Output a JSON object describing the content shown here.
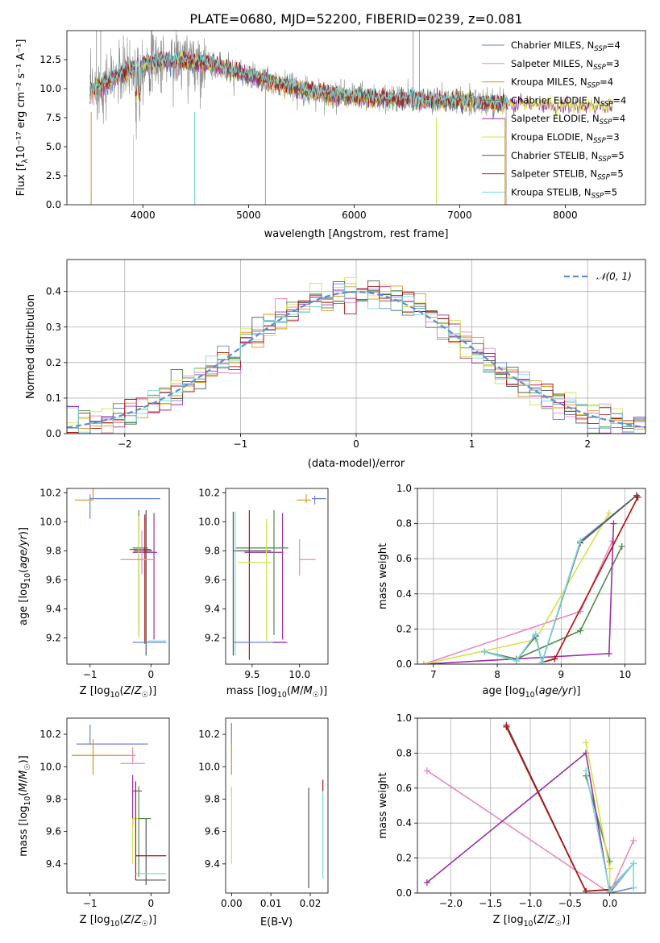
{
  "figure_title": "PLATE=0680, MJD=52200, FIBERID=0239, z=0.081",
  "series_colors": [
    "#6a86d4",
    "#e58bbf",
    "#e0921c",
    "#4d8c4d",
    "#9b30a6",
    "#d4e24a",
    "#555555",
    "#b01515",
    "#7cd9d9"
  ],
  "chart_data": [
    {
      "id": "spectrum",
      "type": "line",
      "title": "PLATE=0680, MJD=52200, FIBERID=0239, z=0.081",
      "xlabel": "wavelength [Angstrom, rest frame]",
      "ylabel": "Flux [fλ10⁻¹⁷ erg cm⁻² s⁻¹ A⁻¹]",
      "xlim": [
        3280,
        8760
      ],
      "ylim": [
        0,
        15
      ],
      "xticks": [
        4000,
        5000,
        6000,
        7000,
        8000
      ],
      "yticks": [
        0.0,
        2.5,
        5.0,
        7.5,
        10.0,
        12.5
      ],
      "data_color": "#888888",
      "data_range": [
        3500,
        7450
      ],
      "model_range": [
        3500,
        8450
      ],
      "grid": false,
      "legend_position": "upper-right",
      "legend": [
        {
          "label": "Chabrier MILES, N",
          "sub": "SSP",
          "suffix": "=4"
        },
        {
          "label": "Salpeter MILES, N",
          "sub": "SSP",
          "suffix": "=3"
        },
        {
          "label": "Kroupa MILES, N",
          "sub": "SSP",
          "suffix": "=4"
        },
        {
          "label": "Chabrier ELODIE, N",
          "sub": "SSP",
          "suffix": "=4"
        },
        {
          "label": "Salpeter ELODIE, N",
          "sub": "SSP",
          "suffix": "=4"
        },
        {
          "label": "Kroupa ELODIE, N",
          "sub": "SSP",
          "suffix": "=3"
        },
        {
          "label": "Chabrier STELIB, N",
          "sub": "SSP",
          "suffix": "=5"
        },
        {
          "label": "Salpeter STELIB, N",
          "sub": "SSP",
          "suffix": "=5"
        },
        {
          "label": "Kroupa STELIB, N",
          "sub": "SSP",
          "suffix": "=5"
        }
      ]
    },
    {
      "id": "residuals",
      "type": "histogram",
      "xlabel": "(data-model)/error",
      "ylabel": "Normed distribution",
      "xlim": [
        -2.5,
        2.5
      ],
      "ylim": [
        0,
        0.49
      ],
      "xticks": [
        -2,
        -1,
        0,
        1,
        2
      ],
      "yticks": [
        0.0,
        0.1,
        0.2,
        0.3,
        0.4
      ],
      "bin_width": 0.1,
      "reference_curve": {
        "label": "𝒩(0, 1)",
        "color": "#5b8fd4",
        "style": "dashed"
      },
      "grid": true,
      "legend_position": "upper-right"
    },
    {
      "id": "age_vs_Z",
      "type": "errorbar",
      "xlabel": "Z [log10(Z/Z☉)]",
      "ylabel": "age [log10(age/yr)]",
      "xlim": [
        -1.38,
        0.3
      ],
      "ylim": [
        9.02,
        10.23
      ],
      "xticks": [
        -1,
        0
      ],
      "yticks": [
        9.2,
        9.4,
        9.6,
        9.8,
        10.0,
        10.2
      ],
      "grid": false,
      "points": [
        {
          "s": 0,
          "x": -1.0,
          "y": 10.16,
          "xerr": [
            0.0,
            1.15
          ],
          "yerr": [
            0.14,
            0.03
          ]
        },
        {
          "s": 2,
          "x": -0.95,
          "y": 10.15,
          "xerr": [
            0.3,
            0.0
          ],
          "yerr": [
            0.0,
            0.2
          ]
        },
        {
          "s": 4,
          "x": 0.05,
          "y": 9.79,
          "xerr": [
            0.35,
            0.05
          ],
          "yerr": [
            0.6,
            0.27
          ]
        },
        {
          "s": 3,
          "x": -0.2,
          "y": 9.82,
          "xerr": [
            0.1,
            0.15
          ],
          "yerr": [
            0.6,
            0.26
          ]
        },
        {
          "s": 6,
          "x": -0.08,
          "y": 9.8,
          "xerr": [
            0.2,
            0.1
          ],
          "yerr": [
            0.72,
            0.28
          ]
        },
        {
          "s": 7,
          "x": -0.1,
          "y": 9.81,
          "xerr": [
            0.25,
            0.1
          ],
          "yerr": [
            0.65,
            0.24
          ]
        },
        {
          "s": 5,
          "x": -0.2,
          "y": 9.74,
          "xerr": [
            0.2,
            0.15
          ],
          "yerr": [
            0.54,
            0.3
          ]
        },
        {
          "s": 1,
          "x": -0.15,
          "y": 9.74,
          "xerr": [
            0.35,
            0.2
          ],
          "yerr": [
            0.1,
            0.2
          ]
        },
        {
          "s": 8,
          "x": 0.25,
          "y": 9.18,
          "xerr": [
            0.3,
            0.0
          ],
          "yerr": [
            0.0,
            0.0
          ]
        },
        {
          "s": 0,
          "x": -0.3,
          "y": 9.17,
          "xerr": [
            0.0,
            0.55
          ],
          "yerr": [
            0.0,
            0.0
          ]
        }
      ]
    },
    {
      "id": "age_vs_mass",
      "type": "errorbar",
      "xlabel": "mass [log10(M/M☉)]",
      "ylabel": "",
      "xlim": [
        9.22,
        10.3
      ],
      "ylim": [
        9.02,
        10.23
      ],
      "xticks": [
        9.5,
        10.0
      ],
      "yticks": [
        9.2,
        9.4,
        9.6,
        9.8,
        10.0,
        10.2
      ],
      "grid": false,
      "points": [
        {
          "s": 0,
          "x": 10.16,
          "y": 10.16,
          "xerr": [
            0.03,
            0.12
          ],
          "yerr": [
            0.04,
            0.02
          ]
        },
        {
          "s": 2,
          "x": 10.07,
          "y": 10.15,
          "xerr": [
            0.1,
            0.05
          ],
          "yerr": [
            0.02,
            0.04
          ]
        },
        {
          "s": 1,
          "x": 10.0,
          "y": 9.74,
          "xerr": [
            0.0,
            0.17
          ],
          "yerr": [
            0.11,
            0.14
          ]
        },
        {
          "s": 4,
          "x": 9.82,
          "y": 9.79,
          "xerr": [
            0.4,
            0.0
          ],
          "yerr": [
            0.6,
            0.27
          ]
        },
        {
          "s": 3,
          "x": 9.73,
          "y": 9.82,
          "xerr": [
            0.4,
            0.15
          ],
          "yerr": [
            0.6,
            0.26
          ]
        },
        {
          "s": 6,
          "x": 9.3,
          "y": 9.8,
          "xerr": [
            0.0,
            0.4
          ],
          "yerr": [
            0.72,
            0.27
          ]
        },
        {
          "s": 7,
          "x": 9.47,
          "y": 9.8,
          "xerr": [
            0.0,
            0.0
          ],
          "yerr": [
            0.75,
            0.28
          ]
        },
        {
          "s": 5,
          "x": 9.65,
          "y": 9.72,
          "xerr": [
            0.3,
            0.05
          ],
          "yerr": [
            0.54,
            0.3
          ]
        },
        {
          "s": 8,
          "x": 9.32,
          "y": 9.5,
          "xerr": [
            0.0,
            0.0
          ],
          "yerr": [
            0.42,
            0.57
          ]
        },
        {
          "s": 0,
          "x": 9.55,
          "y": 9.17,
          "xerr": [
            0.25,
            0.3
          ],
          "yerr": [
            0.0,
            0.0
          ]
        },
        {
          "s": 4,
          "x": 9.72,
          "y": 9.17,
          "xerr": [
            0.0,
            0.15
          ],
          "yerr": [
            0.0,
            0.0
          ]
        }
      ]
    },
    {
      "id": "weight_vs_age",
      "type": "line",
      "xlabel": "age  [log10(age/yr)]",
      "ylabel": "mass weight",
      "xlim": [
        6.75,
        10.32
      ],
      "ylim": [
        0.0,
        1.0
      ],
      "xticks": [
        7,
        8,
        9,
        10
      ],
      "yticks": [
        0.0,
        0.2,
        0.4,
        0.6,
        0.8,
        1.0
      ],
      "grid": true,
      "series": [
        {
          "s": 0,
          "x": [
            7.8,
            8.3,
            8.6,
            8.7,
            9.3,
            10.18
          ],
          "y": [
            0.07,
            0.02,
            0.17,
            0.01,
            0.7,
            0.96
          ]
        },
        {
          "s": 1,
          "x": [
            6.85,
            9.3,
            9.8
          ],
          "y": [
            0.0,
            0.3,
            0.7
          ]
        },
        {
          "s": 2,
          "x": [
            8.7,
            8.9,
            10.2
          ],
          "y": [
            0.01,
            0.03,
            0.95
          ]
        },
        {
          "s": 3,
          "x": [
            7.8,
            8.3,
            9.3,
            9.95
          ],
          "y": [
            0.07,
            0.03,
            0.19,
            0.67
          ]
        },
        {
          "s": 4,
          "x": [
            6.85,
            9.75,
            9.82
          ],
          "y": [
            0.0,
            0.06,
            0.8
          ]
        },
        {
          "s": 5,
          "x": [
            6.85,
            8.6,
            9.75
          ],
          "y": [
            0.0,
            0.14,
            0.86
          ]
        },
        {
          "s": 6,
          "x": [
            7.8,
            8.3,
            8.6,
            8.7,
            9.3,
            10.18
          ],
          "y": [
            0.07,
            0.02,
            0.16,
            0.01,
            0.69,
            0.96
          ]
        },
        {
          "s": 7,
          "x": [
            8.7,
            8.9,
            10.2
          ],
          "y": [
            0.01,
            0.03,
            0.95
          ]
        },
        {
          "s": 8,
          "x": [
            7.8,
            8.3,
            8.6,
            8.7,
            9.3
          ],
          "y": [
            0.07,
            0.02,
            0.17,
            0.01,
            0.7
          ]
        }
      ]
    },
    {
      "id": "mass_vs_Z",
      "type": "errorbar",
      "xlabel": "Z [log10(Z/Z☉)]",
      "ylabel": "mass [log10(M/M☉)]",
      "xlim": [
        -1.38,
        0.3
      ],
      "ylim": [
        9.22,
        10.3
      ],
      "xticks": [
        -1,
        0
      ],
      "yticks": [
        9.4,
        9.6,
        9.8,
        10.0,
        10.2
      ],
      "grid": false,
      "points": [
        {
          "s": 0,
          "x": -1.0,
          "y": 10.14,
          "xerr": [
            0.22,
            0.95
          ],
          "yerr": [
            0.0,
            0.12
          ]
        },
        {
          "s": 2,
          "x": -0.95,
          "y": 10.07,
          "xerr": [
            0.35,
            0.7
          ],
          "yerr": [
            0.12,
            0.1
          ]
        },
        {
          "s": 1,
          "x": -0.3,
          "y": 10.02,
          "xerr": [
            0.2,
            0.2
          ],
          "yerr": [
            0.0,
            0.1
          ]
        },
        {
          "s": 4,
          "x": -0.3,
          "y": 9.85,
          "xerr": [
            0.0,
            0.15
          ],
          "yerr": [
            0.22,
            0.1
          ]
        },
        {
          "s": 5,
          "x": -0.3,
          "y": 9.68,
          "xerr": [
            0.0,
            0.3
          ],
          "yerr": [
            0.28,
            0.0
          ]
        },
        {
          "s": 3,
          "x": -0.2,
          "y": 9.68,
          "xerr": [
            0.0,
            0.2
          ],
          "yerr": [
            0.36,
            0.2
          ]
        },
        {
          "s": 6,
          "x": -0.08,
          "y": 9.68,
          "xerr": [
            0.0,
            0.0
          ],
          "yerr": [
            0.41,
            0.0
          ]
        },
        {
          "s": 7,
          "x": -0.25,
          "y": 9.45,
          "xerr": [
            0.0,
            0.5
          ],
          "yerr": [
            0.15,
            0.46
          ]
        },
        {
          "s": 8,
          "x": 0.0,
          "y": 9.34,
          "xerr": [
            0.25,
            0.25
          ],
          "yerr": [
            0.0,
            0.0
          ]
        },
        {
          "s": 6,
          "x": -0.25,
          "y": 9.3,
          "xerr": [
            0.0,
            0.5
          ],
          "yerr": [
            0.0,
            0.0
          ]
        }
      ]
    },
    {
      "id": "mass_vs_ebv",
      "type": "errorbar",
      "xlabel": "E(B-V)",
      "ylabel": "",
      "xlim": [
        -0.0015,
        0.0245
      ],
      "ylim": [
        9.22,
        10.3
      ],
      "xticks": [
        0.0,
        0.01,
        0.02
      ],
      "yticks": [
        9.4,
        9.6,
        9.8,
        10.0,
        10.2
      ],
      "xtick_labels": [
        "0.00",
        "0.01",
        "0.02"
      ],
      "grid": false,
      "points": [
        {
          "s": 0,
          "x": 0.0,
          "y": 10.14,
          "xerr": [
            0,
            0
          ],
          "yerr": [
            0.0,
            0.13
          ]
        },
        {
          "s": 2,
          "x": 0.0,
          "y": 10.07,
          "xerr": [
            0,
            0
          ],
          "yerr": [
            0.12,
            0.1
          ]
        },
        {
          "s": 5,
          "x": 0.0,
          "y": 9.68,
          "xerr": [
            0,
            0
          ],
          "yerr": [
            0.28,
            0.2
          ]
        },
        {
          "s": 6,
          "x": 0.0196,
          "y": 9.55,
          "xerr": [
            0,
            0
          ],
          "yerr": [
            0.3,
            0.32
          ]
        },
        {
          "s": 7,
          "x": 0.0232,
          "y": 9.85,
          "xerr": [
            0,
            0
          ],
          "yerr": [
            0.0,
            0.07
          ]
        },
        {
          "s": 8,
          "x": 0.0232,
          "y": 9.58,
          "xerr": [
            0,
            0
          ],
          "yerr": [
            0.27,
            0.27
          ]
        }
      ]
    },
    {
      "id": "weight_vs_Z",
      "type": "line",
      "xlabel": "Z [log10(Z/Z☉)]",
      "ylabel": "mass weight",
      "xlim": [
        -2.42,
        0.45
      ],
      "ylim": [
        0.0,
        1.0
      ],
      "xticks": [
        -2.0,
        -1.5,
        -1.0,
        -0.5,
        0.0
      ],
      "xtick_labels": [
        "−2.0",
        "−1.5",
        "−1.0",
        "−0.5",
        "0.0"
      ],
      "yticks": [
        0.0,
        0.2,
        0.4,
        0.6,
        0.8,
        1.0
      ],
      "grid": true,
      "series": [
        {
          "s": 0,
          "x": [
            -1.3,
            -0.3,
            0.0,
            0.3,
            0.0,
            0.3
          ],
          "y": [
            0.96,
            0.01,
            0.02,
            0.17,
            0.0,
            0.03
          ]
        },
        {
          "s": 1,
          "x": [
            -2.3,
            0.0,
            0.3
          ],
          "y": [
            0.7,
            0.0,
            0.3
          ]
        },
        {
          "s": 2,
          "x": [
            -1.3,
            -0.3,
            0.0
          ],
          "y": [
            0.95,
            0.01,
            0.02
          ]
        },
        {
          "s": 3,
          "x": [
            -0.3,
            0.0
          ],
          "y": [
            0.67,
            0.18
          ]
        },
        {
          "s": 4,
          "x": [
            -2.3,
            -0.3,
            0.0
          ],
          "y": [
            0.06,
            0.8,
            0.0
          ]
        },
        {
          "s": 5,
          "x": [
            -0.3,
            0.0,
            0.0
          ],
          "y": [
            0.86,
            0.14,
            0.0
          ]
        },
        {
          "s": 6,
          "x": [
            -1.3,
            -0.3,
            0.0
          ],
          "y": [
            0.96,
            0.01,
            0.02
          ]
        },
        {
          "s": 7,
          "x": [
            -1.3,
            -0.3,
            0.0
          ],
          "y": [
            0.95,
            0.01,
            0.02
          ]
        },
        {
          "s": 8,
          "x": [
            -0.3,
            0.0,
            0.3,
            0.3
          ],
          "y": [
            0.7,
            0.01,
            0.17,
            0.03
          ]
        }
      ]
    }
  ]
}
